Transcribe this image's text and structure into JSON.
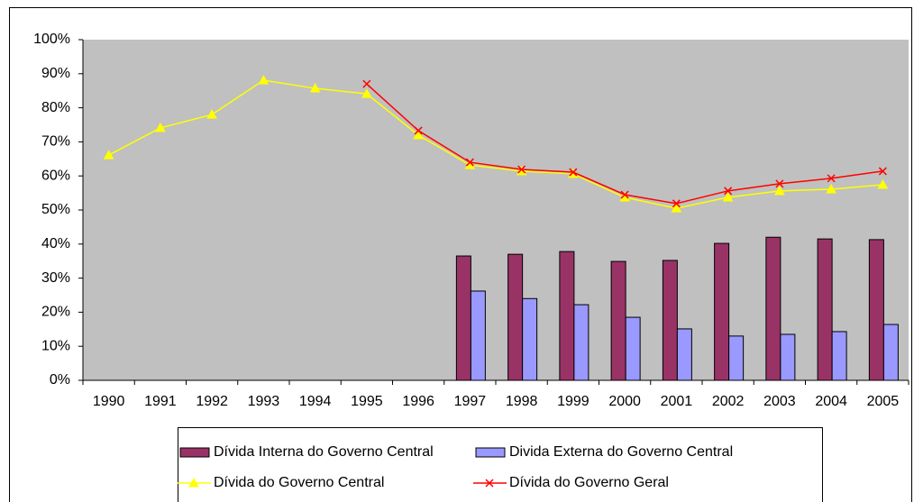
{
  "chart_data": {
    "type": "bar-line",
    "categories": [
      "1990",
      "1991",
      "1992",
      "1993",
      "1994",
      "1995",
      "1996",
      "1997",
      "1998",
      "1999",
      "2000",
      "2001",
      "2002",
      "2003",
      "2004",
      "2005"
    ],
    "series": [
      {
        "name": "Dívida Interna do Governo Central",
        "type": "bar",
        "color": "#993366",
        "values": [
          null,
          null,
          null,
          null,
          null,
          null,
          null,
          36.5,
          37,
          37.8,
          34.9,
          35.2,
          40.2,
          42,
          41.5,
          41.3
        ]
      },
      {
        "name": "Divida Externa do Governo Central",
        "type": "bar",
        "color": "#9999ff",
        "values": [
          null,
          null,
          null,
          null,
          null,
          null,
          null,
          26.2,
          24,
          22.2,
          18.5,
          15.1,
          13,
          13.5,
          14.3,
          16.4
        ]
      },
      {
        "name": "Dívida do Governo Central",
        "type": "line",
        "marker": "triangle",
        "color": "#ffff00",
        "values": [
          66.1,
          74.1,
          78,
          88.1,
          85.7,
          84.1,
          72,
          63.2,
          61.4,
          60.6,
          53.7,
          50.5,
          53.7,
          55.6,
          56.1,
          57.4
        ]
      },
      {
        "name": "Dívida do Governo Geral",
        "type": "line",
        "marker": "x",
        "color": "#ff0000",
        "values": [
          null,
          null,
          null,
          null,
          null,
          87,
          73.3,
          64,
          61.9,
          61.1,
          54.5,
          51.9,
          55.6,
          57.7,
          59.3,
          61.4
        ]
      }
    ],
    "ylim": [
      0,
      100
    ],
    "yticks": [
      {
        "value": 0,
        "label": "0%"
      },
      {
        "value": 10,
        "label": "10%"
      },
      {
        "value": 20,
        "label": "20%"
      },
      {
        "value": 30,
        "label": "30%"
      },
      {
        "value": 40,
        "label": "40%"
      },
      {
        "value": 50,
        "label": "50%"
      },
      {
        "value": 60,
        "label": "60%"
      },
      {
        "value": 70,
        "label": "70%"
      },
      {
        "value": 80,
        "label": "80%"
      },
      {
        "value": 90,
        "label": "90%"
      },
      {
        "value": 100,
        "label": "100%"
      }
    ],
    "grid": false,
    "legend": "bottom",
    "plot_background": "#c0c0c0"
  }
}
